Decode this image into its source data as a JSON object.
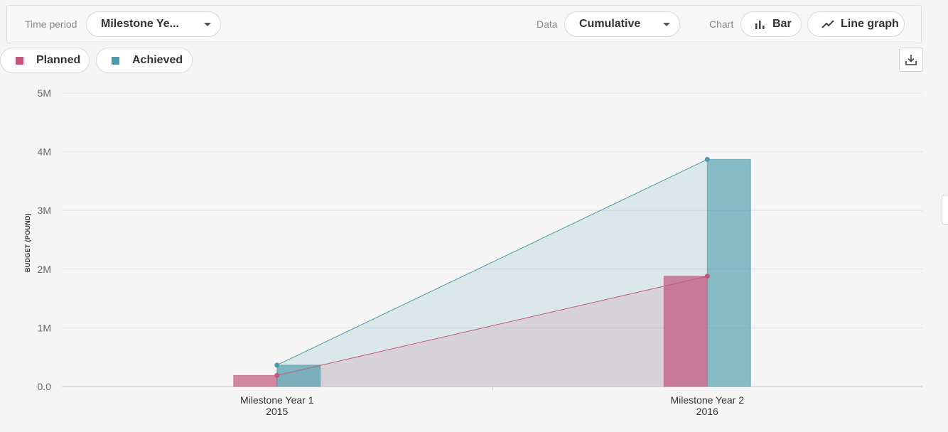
{
  "toolbar": {
    "time_period_label": "Time period",
    "time_period_value": "Milestone Ye...",
    "data_label": "Data",
    "data_value": "Cumulative",
    "chart_label": "Chart",
    "bar_button": "Bar",
    "line_button": "Line graph"
  },
  "legend": {
    "planned": "Planned",
    "achieved": "Achieved"
  },
  "colors": {
    "planned": "#c2577a",
    "achieved": "#4a9aab"
  },
  "icons": {
    "bar": "bar-chart-icon",
    "line": "line-chart-icon",
    "download": "download-icon"
  },
  "chart_data": {
    "type": "bar",
    "categories": [
      [
        "Milestone Year 1",
        "2015"
      ],
      [
        "Milestone Year 2",
        "2016"
      ]
    ],
    "series": [
      {
        "name": "Planned",
        "values": [
          190000,
          1880000
        ],
        "color": "#c2577a"
      },
      {
        "name": "Achieved",
        "values": [
          365000,
          3870000
        ],
        "color": "#4a9aab"
      }
    ],
    "overlay": "line-with-area",
    "ylabel": "BUDGET (POUND)",
    "ylim": [
      0,
      5000000
    ],
    "yticks": [
      {
        "value": 0,
        "label": "0.0"
      },
      {
        "value": 1000000,
        "label": "1M"
      },
      {
        "value": 2000000,
        "label": "2M"
      },
      {
        "value": 3000000,
        "label": "3M"
      },
      {
        "value": 4000000,
        "label": "4M"
      },
      {
        "value": 5000000,
        "label": "5M"
      }
    ],
    "grid": true
  }
}
